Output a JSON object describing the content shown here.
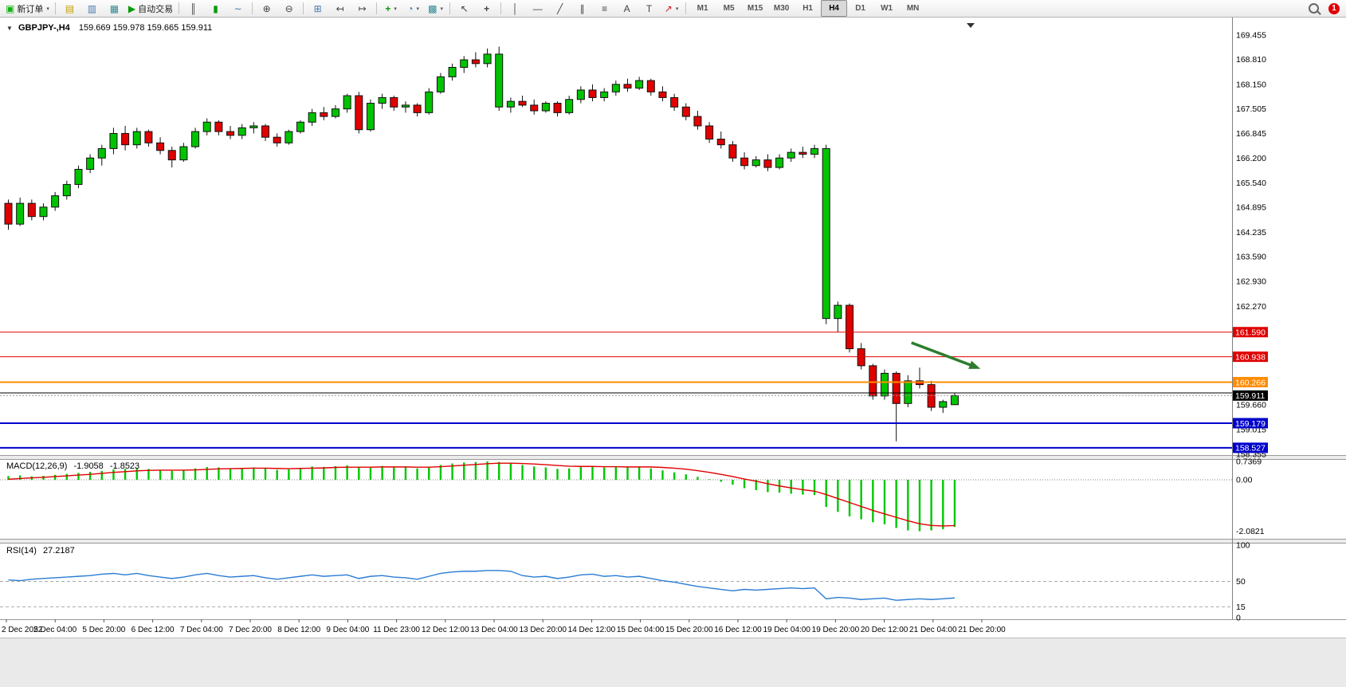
{
  "toolbar": {
    "new_order_label": "新订单",
    "autotrading_label": "自动交易",
    "timeframes": [
      "M1",
      "M5",
      "M15",
      "M30",
      "H1",
      "H4",
      "D1",
      "W1",
      "MN"
    ],
    "active_timeframe": "H4",
    "notification_badge": "1"
  },
  "icons": {
    "new-order-icon": "▣",
    "profiles-icon": "▤",
    "market-watch-icon": "▥",
    "data-window-icon": "▦",
    "autotrading-icon": "▶",
    "bar-chart-icon": "║",
    "candlestick-icon": "▮",
    "line-chart-icon": "∼",
    "zoom-in-icon": "⊕",
    "zoom-out-icon": "⊖",
    "tile-windows-icon": "⊞",
    "shift-left-icon": "↤",
    "shift-right-icon": "↦",
    "indicators-icon": "+",
    "periods-icon": "◔",
    "templates-icon": "▩",
    "cursor-icon": "↖",
    "crosshair-icon": "+",
    "vline-icon": "│",
    "hline-icon": "—",
    "trendline-icon": "╱",
    "channel-icon": "∥",
    "fibonacci-icon": "≡",
    "text-icon": "A",
    "label-icon": "T",
    "arrows-icon": "↗",
    "caret-icon": "▾",
    "one-click-arrow-icon": "▼"
  },
  "chart": {
    "symbol_label": "GBPJPY-,H4",
    "quote_text": "159.669 159.978 159.665 159.911"
  },
  "chart_data": {
    "type": "candlestick",
    "symbol": "GBPJPY-",
    "timeframe": "H4",
    "ohlc_display": {
      "open": "159.669",
      "high": "159.978",
      "low": "159.665",
      "close": "159.911"
    },
    "colors": {
      "up": "#00C300",
      "down": "#E00000",
      "outline": "#111111"
    },
    "y_axis_values": [
      169.455,
      168.81,
      168.15,
      167.505,
      166.845,
      166.2,
      165.54,
      164.895,
      164.235,
      163.59,
      162.93,
      162.27,
      159.66,
      159.015,
      158.355
    ],
    "price_lines": [
      {
        "price": 161.59,
        "color": "#E00000",
        "width": 1,
        "label": "161.590"
      },
      {
        "price": 160.938,
        "color": "#E00000",
        "width": 1,
        "label": "160.938"
      },
      {
        "price": 160.266,
        "color": "#FF8C00",
        "width": 2,
        "label": "160.266"
      },
      {
        "price": 159.98,
        "color": "#000000",
        "width": 1,
        "label": null
      },
      {
        "price": 159.179,
        "color": "#0000CC",
        "width": 2,
        "label": "159.179"
      },
      {
        "price": 158.527,
        "color": "#0000CC",
        "width": 2,
        "label": "158.527"
      }
    ],
    "current_price": {
      "price": 159.911,
      "label": "159.911",
      "color": "#000000"
    },
    "arrow": {
      "from": {
        "bar": 77.3,
        "price": 161.31
      },
      "to": {
        "bar": 83.2,
        "price": 160.62
      },
      "color": "#2D7D2D"
    },
    "time_labels": [
      "2 Dec 2022",
      "5 Dec 04:00",
      "5 Dec 20:00",
      "6 Dec 12:00",
      "7 Dec 04:00",
      "7 Dec 20:00",
      "8 Dec 12:00",
      "9 Dec 04:00",
      "11 Dec 23:00",
      "12 Dec 12:00",
      "13 Dec 04:00",
      "13 Dec 20:00",
      "14 Dec 12:00",
      "15 Dec 04:00",
      "15 Dec 20:00",
      "16 Dec 12:00",
      "19 Dec 04:00",
      "19 Dec 20:00",
      "20 Dec 12:00",
      "21 Dec 04:00",
      "21 Dec 20:00"
    ],
    "candles": [
      [
        165.0,
        165.1,
        164.3,
        164.45
      ],
      [
        164.45,
        165.15,
        164.4,
        165.0
      ],
      [
        165.0,
        165.1,
        164.55,
        164.65
      ],
      [
        164.65,
        165.0,
        164.55,
        164.9
      ],
      [
        164.9,
        165.3,
        164.8,
        165.2
      ],
      [
        165.2,
        165.6,
        165.1,
        165.5
      ],
      [
        165.5,
        166.0,
        165.4,
        165.9
      ],
      [
        165.9,
        166.3,
        165.8,
        166.2
      ],
      [
        166.2,
        166.55,
        166.0,
        166.45
      ],
      [
        166.45,
        167.0,
        166.3,
        166.85
      ],
      [
        166.85,
        167.05,
        166.4,
        166.55
      ],
      [
        166.55,
        167.0,
        166.45,
        166.9
      ],
      [
        166.9,
        166.95,
        166.5,
        166.6
      ],
      [
        166.6,
        166.75,
        166.3,
        166.4
      ],
      [
        166.4,
        166.5,
        165.95,
        166.15
      ],
      [
        166.15,
        166.6,
        166.1,
        166.5
      ],
      [
        166.5,
        167.0,
        166.45,
        166.9
      ],
      [
        166.9,
        167.25,
        166.8,
        167.15
      ],
      [
        167.15,
        167.2,
        166.8,
        166.9
      ],
      [
        166.9,
        167.05,
        166.7,
        166.8
      ],
      [
        166.8,
        167.1,
        166.7,
        167.0
      ],
      [
        167.0,
        167.15,
        166.85,
        167.05
      ],
      [
        167.05,
        167.1,
        166.65,
        166.75
      ],
      [
        166.75,
        166.85,
        166.5,
        166.6
      ],
      [
        166.6,
        166.95,
        166.55,
        166.9
      ],
      [
        166.9,
        167.2,
        166.85,
        167.15
      ],
      [
        167.15,
        167.5,
        167.05,
        167.4
      ],
      [
        167.4,
        167.55,
        167.2,
        167.3
      ],
      [
        167.3,
        167.6,
        167.25,
        167.5
      ],
      [
        167.5,
        167.9,
        167.4,
        167.85
      ],
      [
        167.85,
        167.95,
        166.85,
        166.95
      ],
      [
        166.95,
        167.75,
        166.9,
        167.65
      ],
      [
        167.65,
        167.9,
        167.5,
        167.8
      ],
      [
        167.8,
        167.85,
        167.45,
        167.55
      ],
      [
        167.55,
        167.7,
        167.4,
        167.6
      ],
      [
        167.6,
        167.65,
        167.3,
        167.4
      ],
      [
        167.4,
        168.05,
        167.35,
        167.95
      ],
      [
        167.95,
        168.45,
        167.9,
        168.35
      ],
      [
        168.35,
        168.7,
        168.25,
        168.6
      ],
      [
        168.6,
        168.9,
        168.45,
        168.8
      ],
      [
        168.8,
        169.0,
        168.6,
        168.7
      ],
      [
        168.7,
        169.1,
        168.6,
        168.95
      ],
      [
        168.95,
        169.15,
        167.45,
        167.55,
        1
      ],
      [
        167.55,
        167.8,
        167.4,
        167.7
      ],
      [
        167.7,
        167.85,
        167.55,
        167.6
      ],
      [
        167.6,
        167.75,
        167.35,
        167.45
      ],
      [
        167.45,
        167.7,
        167.4,
        167.65
      ],
      [
        167.65,
        167.7,
        167.3,
        167.4
      ],
      [
        167.4,
        167.85,
        167.35,
        167.75
      ],
      [
        167.75,
        168.1,
        167.65,
        168.0
      ],
      [
        168.0,
        168.15,
        167.7,
        167.8
      ],
      [
        167.8,
        168.05,
        167.7,
        167.95
      ],
      [
        167.95,
        168.25,
        167.85,
        168.15
      ],
      [
        168.15,
        168.3,
        167.95,
        168.05
      ],
      [
        168.05,
        168.35,
        168.0,
        168.25
      ],
      [
        168.25,
        168.3,
        167.85,
        167.95
      ],
      [
        167.95,
        168.1,
        167.7,
        167.8
      ],
      [
        167.8,
        167.9,
        167.45,
        167.55
      ],
      [
        167.55,
        167.65,
        167.2,
        167.3
      ],
      [
        167.3,
        167.45,
        166.95,
        167.05
      ],
      [
        167.05,
        167.15,
        166.6,
        166.7
      ],
      [
        166.7,
        166.9,
        166.45,
        166.55
      ],
      [
        166.55,
        166.65,
        166.1,
        166.2
      ],
      [
        166.2,
        166.35,
        165.9,
        166.0
      ],
      [
        166.0,
        166.25,
        165.95,
        166.15
      ],
      [
        166.15,
        166.3,
        165.85,
        165.95
      ],
      [
        165.95,
        166.3,
        165.9,
        166.2
      ],
      [
        166.2,
        166.45,
        166.1,
        166.35
      ],
      [
        166.35,
        166.5,
        166.2,
        166.3
      ],
      [
        166.3,
        166.55,
        166.2,
        166.45
      ],
      [
        166.45,
        166.55,
        161.8,
        161.95,
        1
      ],
      [
        161.95,
        162.4,
        161.6,
        162.3
      ],
      [
        162.3,
        162.35,
        161.05,
        161.15
      ],
      [
        161.15,
        161.3,
        160.6,
        160.7
      ],
      [
        160.7,
        160.75,
        159.8,
        159.9
      ],
      [
        159.9,
        160.6,
        159.8,
        160.5
      ],
      [
        160.5,
        160.55,
        158.7,
        159.7
      ],
      [
        159.7,
        160.45,
        159.6,
        160.3
      ],
      [
        160.3,
        160.65,
        160.1,
        160.2
      ],
      [
        160.2,
        160.3,
        159.5,
        159.6
      ],
      [
        159.6,
        159.8,
        159.45,
        159.75
      ],
      [
        159.669,
        159.978,
        159.665,
        159.911
      ]
    ],
    "macd": {
      "name": "MACD(12,26,9)",
      "value_main": "-1.9058",
      "value_signal": "-1.8523",
      "colors": {
        "histogram": "#00C800",
        "signal": "#E00000"
      },
      "axis": [
        {
          "v": 0.7369,
          "label": "0.7369"
        },
        {
          "v": 0,
          "label": "0.00"
        },
        {
          "v": -2.0821,
          "label": "-2.0821"
        }
      ],
      "histogram": [
        0.15,
        0.18,
        0.14,
        0.16,
        0.2,
        0.24,
        0.28,
        0.32,
        0.36,
        0.42,
        0.44,
        0.46,
        0.44,
        0.4,
        0.36,
        0.4,
        0.46,
        0.52,
        0.5,
        0.46,
        0.48,
        0.5,
        0.46,
        0.4,
        0.42,
        0.48,
        0.54,
        0.52,
        0.55,
        0.58,
        0.5,
        0.52,
        0.56,
        0.52,
        0.5,
        0.46,
        0.52,
        0.6,
        0.66,
        0.7,
        0.72,
        0.74,
        0.72,
        0.66,
        0.6,
        0.54,
        0.5,
        0.44,
        0.46,
        0.52,
        0.54,
        0.5,
        0.52,
        0.5,
        0.52,
        0.46,
        0.38,
        0.3,
        0.22,
        0.12,
        0.02,
        -0.08,
        -0.2,
        -0.34,
        -0.42,
        -0.5,
        -0.52,
        -0.56,
        -0.6,
        -0.62,
        -1.1,
        -1.3,
        -1.48,
        -1.6,
        -1.72,
        -1.8,
        -1.95,
        -2.05,
        -2.08,
        -2.05,
        -2.0,
        -1.9058
      ],
      "signal": [
        0.02,
        0.05,
        0.08,
        0.1,
        0.13,
        0.16,
        0.19,
        0.22,
        0.26,
        0.3,
        0.33,
        0.36,
        0.38,
        0.39,
        0.39,
        0.39,
        0.4,
        0.42,
        0.44,
        0.45,
        0.46,
        0.47,
        0.47,
        0.46,
        0.45,
        0.46,
        0.47,
        0.48,
        0.5,
        0.51,
        0.51,
        0.51,
        0.52,
        0.52,
        0.52,
        0.51,
        0.51,
        0.53,
        0.56,
        0.59,
        0.62,
        0.65,
        0.67,
        0.67,
        0.66,
        0.64,
        0.61,
        0.58,
        0.55,
        0.54,
        0.54,
        0.53,
        0.53,
        0.52,
        0.52,
        0.52,
        0.5,
        0.47,
        0.43,
        0.37,
        0.3,
        0.22,
        0.13,
        0.03,
        -0.06,
        -0.16,
        -0.25,
        -0.33,
        -0.4,
        -0.46,
        -0.6,
        -0.76,
        -0.92,
        -1.08,
        -1.24,
        -1.38,
        -1.52,
        -1.66,
        -1.78,
        -1.85,
        -1.87,
        -1.8523
      ]
    },
    "rsi": {
      "name": "RSI(14)",
      "value": "27.2187",
      "color": "#2B7CD3",
      "axis": [
        {
          "v": 100,
          "label": "100"
        },
        {
          "v": 50,
          "label": "50"
        },
        {
          "v": 15,
          "label": "15"
        },
        {
          "v": 0,
          "label": "0"
        }
      ],
      "levels": [
        50,
        15
      ],
      "values": [
        52,
        51,
        53,
        54,
        55,
        56,
        57,
        58,
        60,
        61,
        59,
        61,
        58,
        56,
        54,
        56,
        59,
        61,
        58,
        56,
        57,
        58,
        55,
        53,
        55,
        57,
        59,
        57,
        58,
        59,
        54,
        57,
        58,
        56,
        55,
        53,
        57,
        61,
        63,
        64,
        64,
        65,
        65,
        64,
        58,
        56,
        57,
        54,
        56,
        59,
        60,
        57,
        58,
        56,
        57,
        54,
        51,
        49,
        46,
        43,
        41,
        39,
        37,
        39,
        38,
        39,
        40,
        41,
        40,
        41,
        26,
        28,
        27,
        25,
        26,
        27,
        24,
        25,
        26,
        25,
        26,
        27.2
      ]
    }
  }
}
